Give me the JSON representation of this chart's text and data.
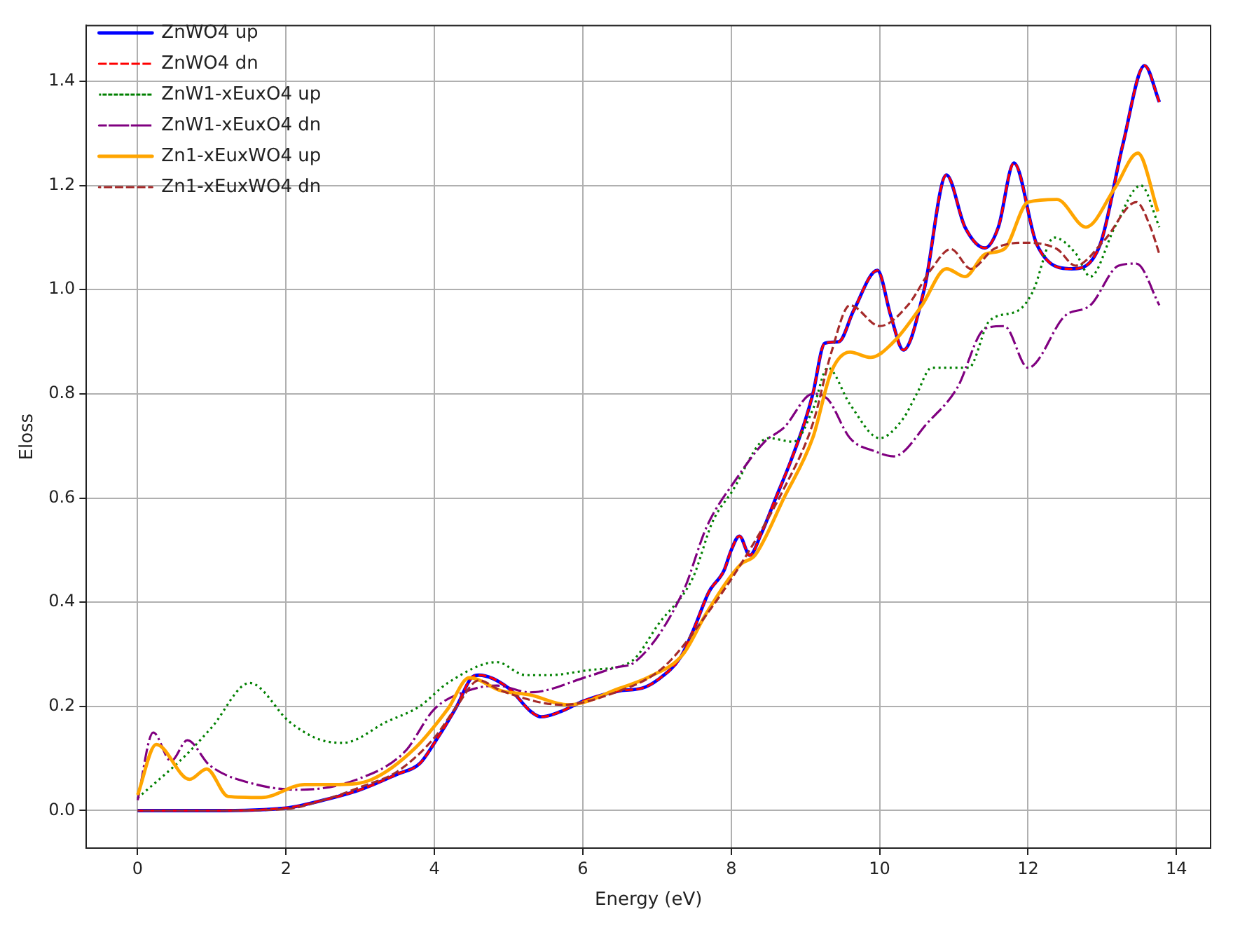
{
  "chart_data": {
    "type": "line",
    "xlabel": "Energy (eV)",
    "ylabel": "Eloss",
    "xlim": [
      -0.69,
      14.46
    ],
    "ylim": [
      -0.072,
      1.507
    ],
    "xticks": [
      0,
      2,
      4,
      6,
      8,
      10,
      12,
      14
    ],
    "yticks": [
      {
        "value": 0,
        "label": "0.0"
      },
      {
        "value": 0.2,
        "label": "0.2"
      },
      {
        "value": 0.4,
        "label": "0.4"
      },
      {
        "value": 0.6,
        "label": "0.6"
      },
      {
        "value": 0.8,
        "label": "0.8"
      },
      {
        "value": 1.0,
        "label": "1.0"
      },
      {
        "value": 1.2,
        "label": "1.2"
      },
      {
        "value": 1.4,
        "label": "1.4"
      }
    ],
    "grid": true,
    "legend": "top left",
    "series": [
      {
        "name": "ZnWO4 up",
        "color": "#0000ff",
        "line_style": "solid",
        "x": [
          0,
          1,
          2,
          2.5,
          3,
          3.5,
          3.8,
          4,
          4.3,
          4.5,
          4.6,
          5,
          5.3,
          5.44,
          5.7,
          6,
          6.5,
          6.8,
          7,
          7.32,
          7.5,
          7.7,
          7.9,
          8,
          8.11,
          8.25,
          8.4,
          8.6,
          8.8,
          9,
          9.1,
          9.26,
          9.45,
          9.65,
          9.97,
          10.15,
          10.32,
          10.6,
          10.9,
          11.15,
          11.42,
          11.6,
          11.81,
          12.12,
          12.59,
          12.97,
          13.28,
          13.57,
          13.77
        ],
        "values": [
          0,
          0,
          0.005,
          0.02,
          0.04,
          0.07,
          0.09,
          0.13,
          0.2,
          0.255,
          0.26,
          0.235,
          0.19,
          0.18,
          0.19,
          0.21,
          0.23,
          0.235,
          0.25,
          0.295,
          0.35,
          0.42,
          0.46,
          0.5,
          0.527,
          0.49,
          0.53,
          0.6,
          0.67,
          0.75,
          0.8,
          0.897,
          0.9,
          0.96,
          1.037,
          0.95,
          0.884,
          1.0,
          1.22,
          1.12,
          1.08,
          1.12,
          1.243,
          1.086,
          1.04,
          1.086,
          1.28,
          1.43,
          1.36
        ]
      },
      {
        "name": "ZnWO4 dn",
        "color": "#ff0000",
        "line_style": "dashed",
        "x": [
          0,
          1,
          2,
          2.5,
          3,
          3.5,
          3.8,
          4,
          4.3,
          4.5,
          4.6,
          5,
          5.3,
          5.44,
          5.7,
          6,
          6.5,
          6.8,
          7,
          7.32,
          7.5,
          7.7,
          7.9,
          8,
          8.11,
          8.25,
          8.4,
          8.6,
          8.8,
          9,
          9.1,
          9.26,
          9.45,
          9.65,
          9.97,
          10.15,
          10.32,
          10.6,
          10.9,
          11.15,
          11.42,
          11.6,
          11.81,
          12.12,
          12.59,
          12.97,
          13.28,
          13.57,
          13.77
        ],
        "values": [
          0,
          0,
          0.005,
          0.02,
          0.04,
          0.07,
          0.09,
          0.13,
          0.2,
          0.255,
          0.26,
          0.235,
          0.19,
          0.18,
          0.19,
          0.21,
          0.23,
          0.235,
          0.25,
          0.295,
          0.35,
          0.42,
          0.46,
          0.5,
          0.527,
          0.49,
          0.53,
          0.6,
          0.67,
          0.75,
          0.8,
          0.897,
          0.9,
          0.96,
          1.037,
          0.95,
          0.884,
          1.0,
          1.22,
          1.12,
          1.08,
          1.12,
          1.243,
          1.086,
          1.04,
          1.086,
          1.28,
          1.43,
          1.36
        ]
      },
      {
        "name": "ZnW1-xEuxO4 up",
        "color": "#008000",
        "line_style": "dotted",
        "x": [
          0,
          0.64,
          1.0,
          1.51,
          2.05,
          2.44,
          2.77,
          3.35,
          3.8,
          4.18,
          4.84,
          5.23,
          5.54,
          6.1,
          6.64,
          7.03,
          7.48,
          7.75,
          8.0,
          8.5,
          8.84,
          9.1,
          9.3,
          9.6,
          10.0,
          10.32,
          10.5,
          10.7,
          10.9,
          11.2,
          11.48,
          11.87,
          12.06,
          12.35,
          12.64,
          12.84,
          13.17,
          13.52,
          13.77
        ],
        "values": [
          0.024,
          0.105,
          0.16,
          0.245,
          0.17,
          0.137,
          0.13,
          0.17,
          0.2,
          0.245,
          0.285,
          0.26,
          0.26,
          0.27,
          0.285,
          0.36,
          0.446,
          0.555,
          0.61,
          0.715,
          0.708,
          0.77,
          0.85,
          0.78,
          0.715,
          0.753,
          0.8,
          0.85,
          0.85,
          0.85,
          0.94,
          0.96,
          0.995,
          1.1,
          1.07,
          1.025,
          1.12,
          1.2,
          1.12
        ]
      },
      {
        "name": "ZnW1-xEuxO4 dn",
        "color": "#800080",
        "line_style": "dashdot",
        "x": [
          0,
          0.21,
          0.45,
          0.67,
          0.97,
          1.6,
          2.19,
          2.96,
          3.6,
          4.0,
          4.45,
          4.84,
          5.29,
          6.06,
          6.45,
          6.7,
          7.35,
          7.67,
          8.06,
          8.45,
          8.71,
          9.1,
          9.3,
          9.6,
          9.93,
          10.19,
          10.65,
          11.04,
          11.42,
          11.68,
          12.0,
          12.5,
          12.84,
          13.22,
          13.46,
          13.77
        ],
        "values": [
          0.02,
          0.15,
          0.095,
          0.135,
          0.087,
          0.05,
          0.04,
          0.06,
          0.113,
          0.195,
          0.23,
          0.24,
          0.227,
          0.257,
          0.275,
          0.285,
          0.42,
          0.545,
          0.635,
          0.708,
          0.735,
          0.8,
          0.79,
          0.715,
          0.69,
          0.68,
          0.745,
          0.81,
          0.925,
          0.93,
          0.85,
          0.95,
          0.97,
          1.046,
          1.05,
          0.97
        ]
      },
      {
        "name": "Zn1-xEuxWO4 up",
        "color": "#ffa500",
        "line_style": "solid",
        "x": [
          0,
          0.25,
          0.7,
          0.93,
          1.22,
          1.67,
          2.25,
          2.71,
          3.16,
          3.74,
          4.18,
          4.47,
          4.9,
          5.29,
          5.8,
          6.5,
          6.9,
          7.35,
          7.67,
          8.13,
          8.32,
          8.71,
          9.1,
          9.35,
          9.6,
          9.88,
          10.19,
          10.57,
          10.9,
          11.15,
          11.42,
          11.68,
          12.0,
          12.39,
          12.78,
          13.17,
          13.48,
          13.75
        ],
        "values": [
          0.03,
          0.127,
          0.06,
          0.08,
          0.027,
          0.025,
          0.05,
          0.05,
          0.06,
          0.12,
          0.195,
          0.255,
          0.23,
          0.222,
          0.203,
          0.235,
          0.257,
          0.3,
          0.38,
          0.473,
          0.49,
          0.6,
          0.716,
          0.843,
          0.88,
          0.87,
          0.9,
          0.97,
          1.04,
          1.025,
          1.068,
          1.078,
          1.168,
          1.173,
          1.12,
          1.195,
          1.262,
          1.15
        ]
      },
      {
        "name": "Zn1-xEuxWO4 dn",
        "color": "#a52a2a",
        "line_style": "dashed",
        "x": [
          0,
          1,
          2,
          2.5,
          3,
          3.5,
          4,
          4.3,
          4.6,
          4.9,
          5.73,
          6.5,
          6.97,
          7.22,
          7.61,
          8.13,
          8.71,
          9.1,
          9.35,
          9.6,
          10.0,
          10.38,
          10.7,
          10.96,
          11.23,
          11.54,
          11.93,
          12.39,
          12.64,
          13.03,
          13.46,
          13.65,
          13.77
        ],
        "values": [
          0,
          0,
          0.003,
          0.02,
          0.045,
          0.075,
          0.14,
          0.2,
          0.25,
          0.23,
          0.203,
          0.23,
          0.262,
          0.294,
          0.365,
          0.473,
          0.618,
          0.743,
          0.88,
          0.97,
          0.93,
          0.97,
          1.04,
          1.078,
          1.04,
          1.078,
          1.09,
          1.078,
          1.046,
          1.095,
          1.168,
          1.12,
          1.068
        ]
      }
    ]
  }
}
